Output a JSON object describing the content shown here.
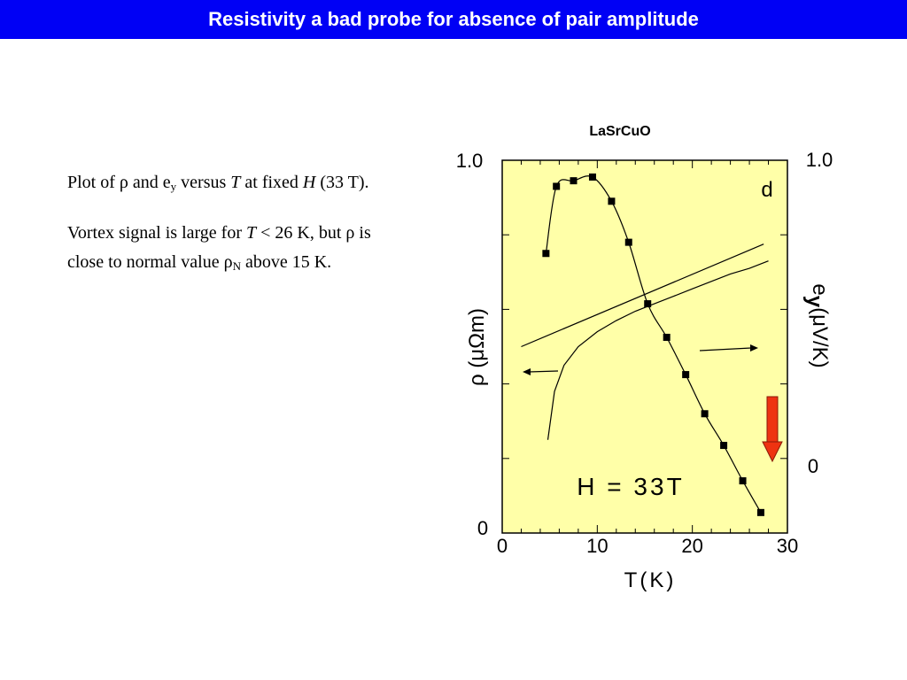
{
  "slide": {
    "title": "Resistivity a bad probe for absence of pair amplitude"
  },
  "caption": {
    "p1": {
      "pre": "Plot of ",
      "rho": "ρ",
      "mid1": " and e",
      "sub_y": "y",
      "mid2": " versus ",
      "T": "T",
      "mid3": " at fixed ",
      "H": "H",
      "post": " (33 T)."
    },
    "p2": {
      "pre": "Vortex signal is large for ",
      "T": "T",
      "mid": " < 26 K, but ρ is close to normal value ρ",
      "sub_N": "N",
      "post": " above 15 K."
    }
  },
  "colors": {
    "title_bar": "#0000f5",
    "plot_bg": "#ffffa8",
    "arrow_red": "#ee3311"
  },
  "chart_data": {
    "type": "line",
    "title": "LaSrCuO",
    "panel_label": "d",
    "annotation": "H = 33T",
    "xlabel": "T(K)",
    "ylabel_left": "ρ (μΩm)",
    "ylabel_right_symbol": "e",
    "ylabel_right_sub": "y",
    "ylabel_right_unit": "(μV/K)",
    "xlim": [
      0,
      30
    ],
    "ylim_left": [
      0,
      1.0
    ],
    "ylim_right": [
      0,
      1.0
    ],
    "x_ticks": [
      "0",
      "10",
      "20",
      "30"
    ],
    "left_ticks": [
      "0",
      "1.0"
    ],
    "right_ticks": [
      "0",
      "1.0"
    ],
    "grid": false,
    "series": [
      {
        "axis": "left",
        "marker": "square",
        "x": [
          4.6,
          5.7,
          7.5,
          9.5,
          11.5,
          13.3,
          15.3,
          17.3,
          19.3,
          21.3,
          23.3,
          25.3,
          27.2
        ],
        "y": [
          0.75,
          0.93,
          0.945,
          0.955,
          0.89,
          0.78,
          0.615,
          0.525,
          0.425,
          0.32,
          0.235,
          0.14,
          0.055
        ]
      },
      {
        "axis": "right",
        "marker": "none",
        "x": [
          4.8,
          5.5,
          6.5,
          8,
          10,
          12,
          14,
          16,
          18,
          20,
          22,
          24,
          26,
          28
        ],
        "y": [
          0.25,
          0.38,
          0.45,
          0.5,
          0.54,
          0.57,
          0.595,
          0.615,
          0.635,
          0.655,
          0.675,
          0.695,
          0.71,
          0.73
        ]
      },
      {
        "axis": "right",
        "marker": "none",
        "x": [
          2,
          27.5
        ],
        "y": [
          0.5,
          0.775
        ]
      }
    ]
  }
}
